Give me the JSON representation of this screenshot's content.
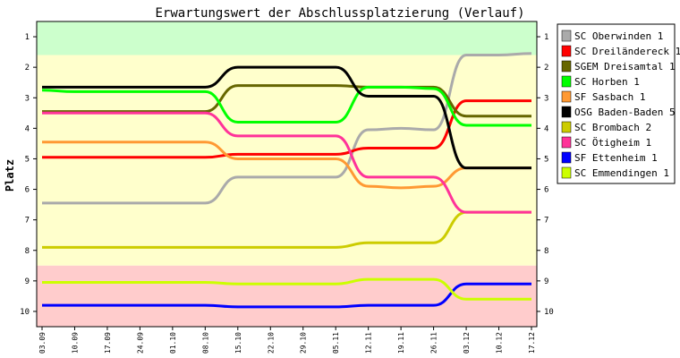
{
  "chart_data": {
    "type": "line",
    "title": "Erwartungswert der Abschlussplatzierung (Verlauf)",
    "ylabel": "Platz",
    "xlabel": "",
    "y_inverted": true,
    "ylim": [
      0.5,
      10.5
    ],
    "yticks": [
      1,
      2,
      3,
      4,
      5,
      6,
      7,
      8,
      9,
      10
    ],
    "x": [
      "03.09",
      "10.09",
      "17.09",
      "24.09",
      "01.10",
      "08.10",
      "15.10",
      "22.10",
      "29.10",
      "05.11",
      "12.11",
      "19.11",
      "26.11",
      "03.12",
      "10.12",
      "17.12"
    ],
    "bands": [
      {
        "from": 0.5,
        "to": 1.6,
        "color": "#ccffcc"
      },
      {
        "from": 1.6,
        "to": 8.5,
        "color": "#ffffcc"
      },
      {
        "from": 8.5,
        "to": 10.5,
        "color": "#ffcccc"
      }
    ],
    "legend_position": "right",
    "series": [
      {
        "name": "SC Oberwinden 1",
        "color": "#aaaaaa",
        "values": [
          6.45,
          6.45,
          6.45,
          6.45,
          6.45,
          6.45,
          5.6,
          5.6,
          5.6,
          5.6,
          4.05,
          4.0,
          4.05,
          1.6,
          1.6,
          1.55
        ]
      },
      {
        "name": "SC Dreiländereck 1",
        "color": "#ff0000",
        "values": [
          4.95,
          4.95,
          4.95,
          4.95,
          4.95,
          4.95,
          4.85,
          4.85,
          4.85,
          4.85,
          4.65,
          4.65,
          4.65,
          3.1,
          3.1,
          3.1
        ]
      },
      {
        "name": "SGEM Dreisamtal 1",
        "color": "#666600",
        "values": [
          3.45,
          3.45,
          3.45,
          3.45,
          3.45,
          3.45,
          2.6,
          2.6,
          2.6,
          2.6,
          2.65,
          2.65,
          2.65,
          3.6,
          3.6,
          3.6
        ]
      },
      {
        "name": "SC Horben 1",
        "color": "#00ff00",
        "values": [
          2.75,
          2.8,
          2.8,
          2.8,
          2.8,
          2.8,
          3.8,
          3.8,
          3.8,
          3.8,
          2.65,
          2.65,
          2.7,
          3.9,
          3.9,
          3.9
        ]
      },
      {
        "name": "SF Sasbach 1",
        "color": "#ff9933",
        "values": [
          4.45,
          4.45,
          4.45,
          4.45,
          4.45,
          4.45,
          5.0,
          5.0,
          5.0,
          5.0,
          5.9,
          5.95,
          5.9,
          5.3,
          5.3,
          5.3
        ]
      },
      {
        "name": "OSG Baden-Baden 5",
        "color": "#000000",
        "values": [
          2.65,
          2.65,
          2.65,
          2.65,
          2.65,
          2.65,
          2.0,
          2.0,
          2.0,
          2.0,
          2.95,
          2.95,
          2.95,
          5.3,
          5.3,
          5.3
        ]
      },
      {
        "name": "SC Brombach 2",
        "color": "#cccc00",
        "values": [
          7.9,
          7.9,
          7.9,
          7.9,
          7.9,
          7.9,
          7.9,
          7.9,
          7.9,
          7.9,
          7.75,
          7.75,
          7.75,
          6.75,
          6.75,
          6.75
        ]
      },
      {
        "name": "SC Ötigheim 1",
        "color": "#ff3399",
        "values": [
          3.5,
          3.5,
          3.5,
          3.5,
          3.5,
          3.5,
          4.25,
          4.25,
          4.25,
          4.25,
          5.6,
          5.6,
          5.6,
          6.75,
          6.75,
          6.75
        ]
      },
      {
        "name": "SF Ettenheim 1",
        "color": "#0000ff",
        "values": [
          9.8,
          9.8,
          9.8,
          9.8,
          9.8,
          9.8,
          9.85,
          9.85,
          9.85,
          9.85,
          9.8,
          9.8,
          9.8,
          9.1,
          9.1,
          9.1
        ]
      },
      {
        "name": "SC Emmendingen 1",
        "color": "#ccff00",
        "values": [
          9.05,
          9.05,
          9.05,
          9.05,
          9.05,
          9.05,
          9.1,
          9.1,
          9.1,
          9.1,
          8.95,
          8.95,
          8.95,
          9.6,
          9.6,
          9.6
        ]
      }
    ]
  }
}
